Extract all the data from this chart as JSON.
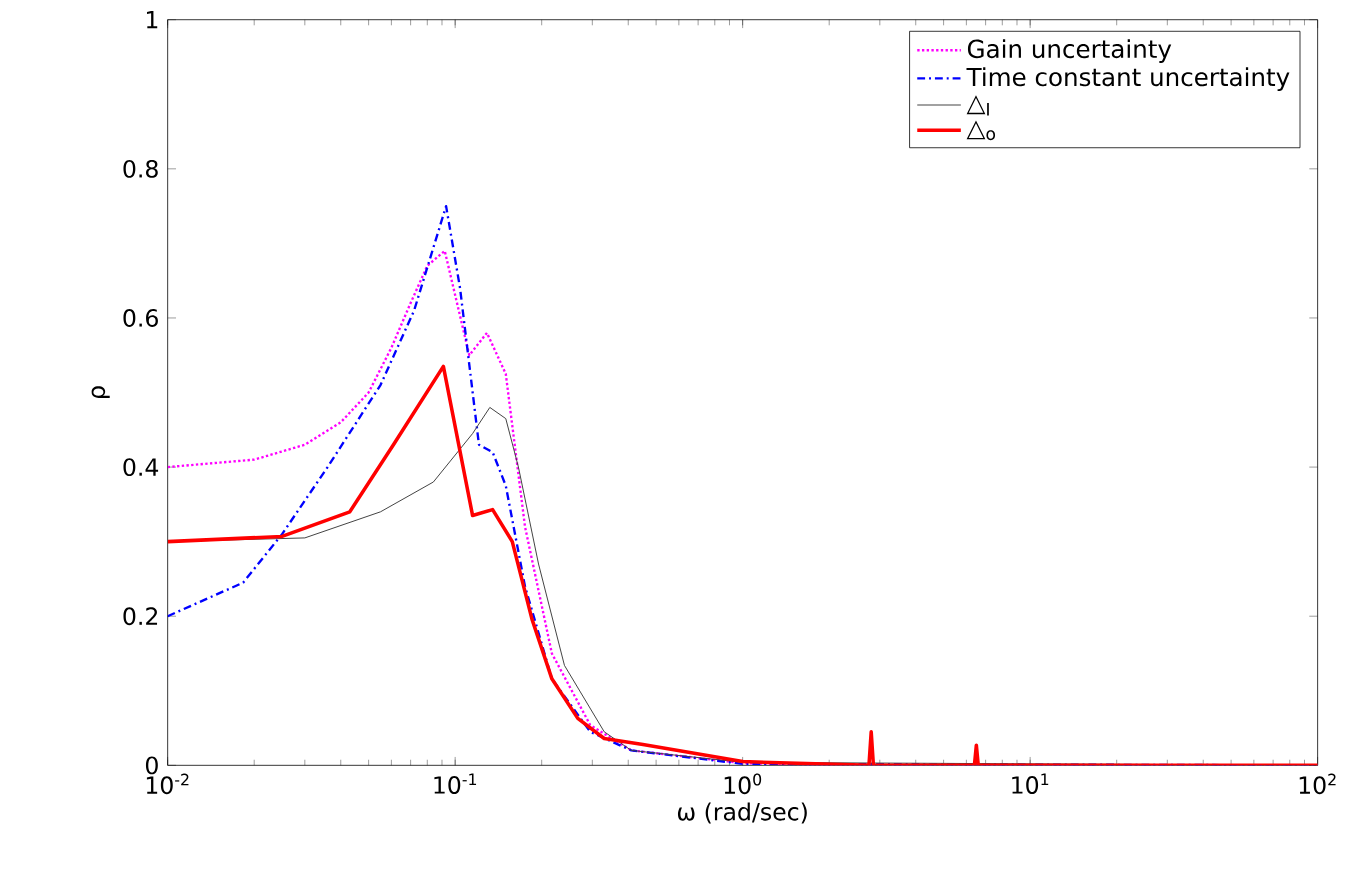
{
  "chart_data": {
    "type": "line",
    "xlabel": "ω (rad/sec)",
    "ylabel": "ρ",
    "log": "x",
    "legend": "top right",
    "grid": false,
    "xlim": [
      0.01,
      100
    ],
    "ylim": [
      0,
      1
    ],
    "xticks": [
      {
        "value": 0.01,
        "label": "10$^{-2}$"
      },
      {
        "value": 0.1,
        "label": "10$^{-1}$"
      },
      {
        "value": 1,
        "label": "10$^{0}$"
      },
      {
        "value": 10,
        "label": "10$^{1}$"
      },
      {
        "value": 100,
        "label": "10$^{2}$"
      }
    ],
    "yticks": [
      0,
      0.2,
      0.4,
      0.6,
      0.8,
      1
    ],
    "series": [
      {
        "name": "Gain uncertainty",
        "color": "#ff00ff",
        "line_style": "dotted",
        "x": [
          0.01,
          0.02,
          0.03,
          0.04,
          0.05,
          0.06,
          0.07,
          0.08,
          0.092,
          0.112,
          0.129,
          0.15,
          0.175,
          0.217,
          0.295,
          0.41,
          1,
          2,
          100
        ],
        "values": [
          0.4,
          0.41,
          0.43,
          0.46,
          0.5,
          0.56,
          0.62,
          0.67,
          0.69,
          0.55,
          0.58,
          0.525,
          0.32,
          0.15,
          0.054,
          0.02,
          0.003,
          0,
          0
        ]
      },
      {
        "name": "Time constant uncertainty",
        "color": "#0000ff",
        "line_style": "dashdot",
        "x": [
          0.01,
          0.0183,
          0.025,
          0.036,
          0.055,
          0.072,
          0.093,
          0.104,
          0.121,
          0.135,
          0.15,
          0.175,
          0.217,
          0.295,
          0.41,
          1,
          100
        ],
        "values": [
          0.2,
          0.245,
          0.31,
          0.4,
          0.51,
          0.61,
          0.75,
          0.64,
          0.43,
          0.42,
          0.375,
          0.24,
          0.116,
          0.045,
          0.02,
          0.002,
          0
        ]
      },
      {
        "name": "△$_{I}$",
        "color": "#404040",
        "line_style": "solid",
        "x": [
          0.01,
          0.03,
          0.055,
          0.084,
          0.115,
          0.132,
          0.15,
          0.166,
          0.195,
          0.24,
          0.33,
          0.41,
          1,
          100
        ],
        "values": [
          0.3,
          0.305,
          0.34,
          0.38,
          0.445,
          0.48,
          0.465,
          0.4,
          0.27,
          0.134,
          0.045,
          0.02,
          0.004,
          0
        ]
      },
      {
        "name": "△$_{o}$",
        "color": "#ff0000",
        "line_style": "solid",
        "x": [
          0.01,
          0.025,
          0.043,
          0.061,
          0.091,
          0.115,
          0.135,
          0.158,
          0.185,
          0.217,
          0.267,
          0.33,
          0.45,
          1,
          2.75,
          2.8,
          2.85,
          6.4,
          6.5,
          6.6,
          100
        ],
        "values": [
          0.3,
          0.307,
          0.34,
          0.43,
          0.535,
          0.335,
          0.343,
          0.3,
          0.196,
          0.116,
          0.063,
          0.036,
          0.028,
          0.005,
          0,
          0.045,
          0,
          0,
          0.027,
          0,
          0
        ]
      }
    ]
  }
}
